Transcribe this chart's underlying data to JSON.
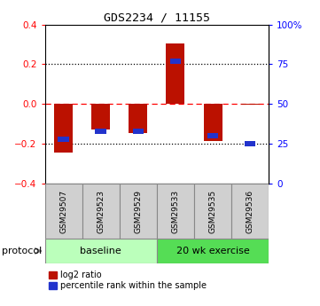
{
  "title": "GDS2234 / 11155",
  "samples": [
    "GSM29507",
    "GSM29523",
    "GSM29529",
    "GSM29533",
    "GSM29535",
    "GSM29536"
  ],
  "log2_ratio": [
    -0.245,
    -0.13,
    -0.145,
    0.305,
    -0.185,
    -0.005
  ],
  "percentile_rank": [
    28,
    33,
    33,
    77,
    30,
    25
  ],
  "groups": [
    {
      "label": "baseline",
      "start": 0,
      "end": 3,
      "color": "#bbffbb"
    },
    {
      "label": "20 wk exercise",
      "start": 3,
      "end": 6,
      "color": "#55dd55"
    }
  ],
  "bar_width": 0.5,
  "bar_color_red": "#bb1100",
  "bar_color_blue": "#2233cc",
  "ylim": [
    -0.4,
    0.4
  ],
  "y2lim": [
    0,
    100
  ],
  "yticks": [
    -0.4,
    -0.2,
    0.0,
    0.2,
    0.4
  ],
  "y2ticks": [
    0,
    25,
    50,
    75,
    100
  ],
  "y2ticklabels": [
    "0",
    "25",
    "50",
    "75",
    "100%"
  ],
  "protocol_label": "protocol",
  "bg_color": "white"
}
